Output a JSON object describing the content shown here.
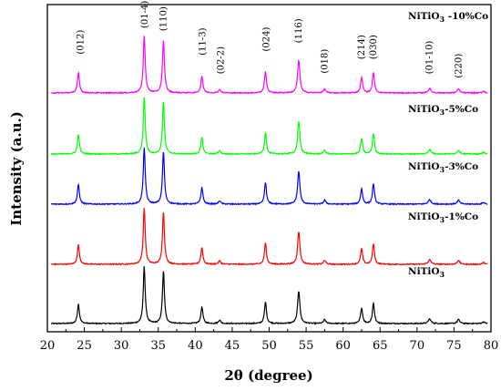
{
  "chart_data": {
    "type": "line",
    "xlabel": "2θ (degree)",
    "ylabel": "Intensity (a.u.)",
    "xlim": [
      20,
      80
    ],
    "xticks": [
      "20",
      "25",
      "30",
      "35",
      "40",
      "45",
      "50",
      "55",
      "60",
      "65",
      "70",
      "75",
      "80"
    ],
    "grid": false,
    "series": [
      {
        "name": "NiTiO3",
        "label_main": "NiTiO",
        "label_sub": "3",
        "label_rest": "",
        "color": "#000000"
      },
      {
        "name": "NiTiO3-1%Co",
        "label_main": "NiTiO",
        "label_sub": "3",
        "label_rest": "-1%Co",
        "color": "#ff0000"
      },
      {
        "name": "NiTiO3-3%Co",
        "label_main": "NiTiO",
        "label_sub": "3",
        "label_rest": "-3%Co",
        "color": "#0000ff"
      },
      {
        "name": "NiTiO3-5%Co",
        "label_main": "NiTiO",
        "label_sub": "3",
        "label_rest": "-5%Co",
        "color": "#00ff00"
      },
      {
        "name": "NiTiO3-10%Co",
        "label_main": "NiTiO",
        "label_sub": "3",
        "label_rest": " -10%Co",
        "color": "#ff00ff"
      }
    ],
    "peaks": [
      {
        "x": 24.2,
        "h": 0.35,
        "w": 0.16
      },
      {
        "x": 33.1,
        "h": 1.0,
        "w": 0.16
      },
      {
        "x": 35.7,
        "h": 0.93,
        "w": 0.16
      },
      {
        "x": 40.9,
        "h": 0.3,
        "w": 0.16
      },
      {
        "x": 43.3,
        "h": 0.06,
        "w": 0.18
      },
      {
        "x": 49.5,
        "h": 0.38,
        "w": 0.16
      },
      {
        "x": 54.0,
        "h": 0.58,
        "w": 0.18
      },
      {
        "x": 57.5,
        "h": 0.07,
        "w": 0.18
      },
      {
        "x": 62.5,
        "h": 0.28,
        "w": 0.16
      },
      {
        "x": 64.1,
        "h": 0.36,
        "w": 0.16
      },
      {
        "x": 71.7,
        "h": 0.08,
        "w": 0.22
      },
      {
        "x": 75.6,
        "h": 0.07,
        "w": 0.2
      },
      {
        "x": 79.0,
        "h": 0.03,
        "w": 0.2
      }
    ],
    "peak_labels": [
      {
        "x": 24.5,
        "text": "(012)",
        "level": 0.62
      },
      {
        "x": 33.2,
        "text": "(01-4)",
        "level": 1.08
      },
      {
        "x": 35.7,
        "text": "(110)",
        "level": 1.03
      },
      {
        "x": 41.0,
        "text": "(11-3)",
        "level": 0.6
      },
      {
        "x": 43.5,
        "text": "(02-2)",
        "level": 0.27
      },
      {
        "x": 49.6,
        "text": "(024)",
        "level": 0.67
      },
      {
        "x": 54.0,
        "text": "(116)",
        "level": 0.82
      },
      {
        "x": 57.5,
        "text": "(018)",
        "level": 0.28
      },
      {
        "x": 62.5,
        "text": "(214)",
        "level": 0.53
      },
      {
        "x": 64.1,
        "text": "(030)",
        "level": 0.53
      },
      {
        "x": 71.7,
        "text": "(01-10)",
        "level": 0.27
      },
      {
        "x": 75.6,
        "text": "(220)",
        "level": 0.2
      }
    ]
  }
}
